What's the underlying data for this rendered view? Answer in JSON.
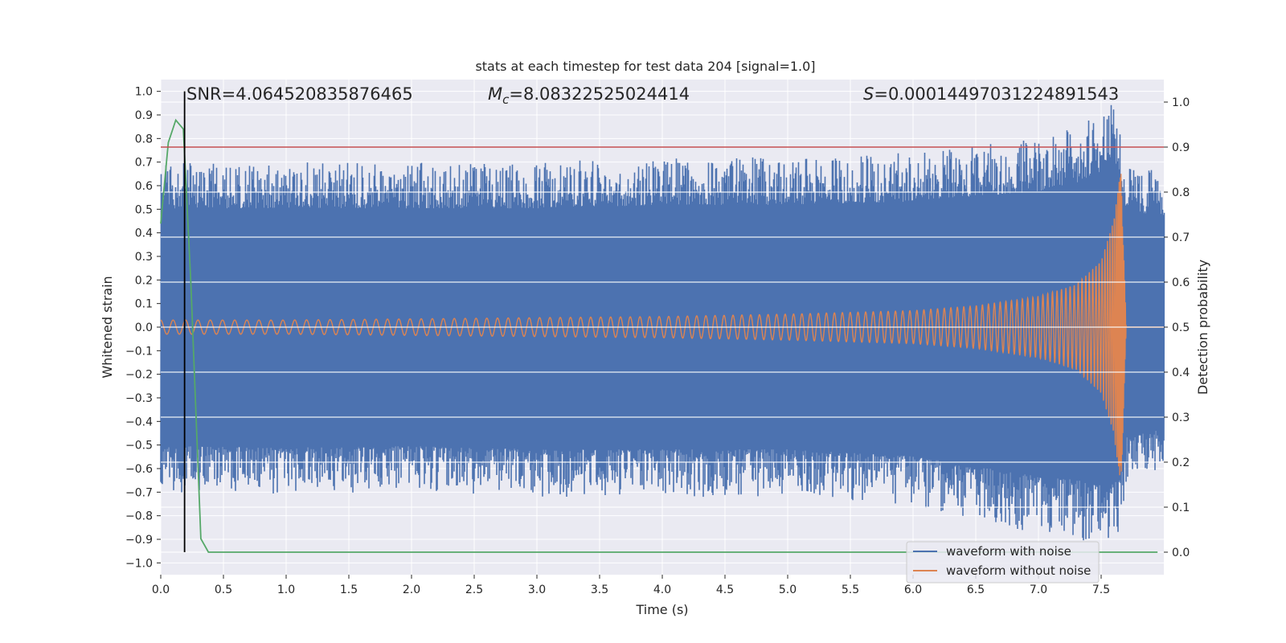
{
  "chart_data": {
    "type": "line",
    "title": "stats at each timestep for test data 204 [signal=1.0]",
    "xlabel": "Time (s)",
    "ylabel": "Whitened strain",
    "ylabel_right": "Detection probability",
    "xlim": [
      0.0,
      8.0
    ],
    "ylim": [
      -1.05,
      1.05
    ],
    "ylim_right": [
      -0.05,
      1.05
    ],
    "x_ticks": [
      0.0,
      0.5,
      1.0,
      1.5,
      2.0,
      2.5,
      3.0,
      3.5,
      4.0,
      4.5,
      5.0,
      5.5,
      6.0,
      6.5,
      7.0,
      7.5
    ],
    "x_tick_labels": [
      "0.0",
      "0.5",
      "1.0",
      "1.5",
      "2.0",
      "2.5",
      "3.0",
      "3.5",
      "4.0",
      "4.5",
      "5.0",
      "5.5",
      "6.0",
      "6.5",
      "7.0",
      "7.5"
    ],
    "y_ticks": [
      -1.0,
      -0.9,
      -0.8,
      -0.7,
      -0.6,
      -0.5,
      -0.4,
      -0.3,
      -0.2,
      -0.1,
      0.0,
      0.1,
      0.2,
      0.3,
      0.4,
      0.5,
      0.6,
      0.7,
      0.8,
      0.9,
      1.0
    ],
    "y_tick_labels": [
      "−1.0",
      "−0.9",
      "−0.8",
      "−0.7",
      "−0.6",
      "−0.5",
      "−0.4",
      "−0.3",
      "−0.2",
      "−0.1",
      "0.0",
      "0.1",
      "0.2",
      "0.3",
      "0.4",
      "0.5",
      "0.6",
      "0.7",
      "0.8",
      "0.9",
      "1.0"
    ],
    "y_right_ticks": [
      0.0,
      0.1,
      0.2,
      0.3,
      0.4,
      0.5,
      0.6,
      0.7,
      0.8,
      0.9,
      1.0
    ],
    "y_right_tick_labels": [
      "0.0",
      "0.1",
      "0.2",
      "0.3",
      "0.4",
      "0.5",
      "0.6",
      "0.7",
      "0.8",
      "0.9",
      "1.0"
    ],
    "annotations": {
      "snr": "SNR=4.064520835876465",
      "mc_symbol": "M",
      "mc_sub": "c",
      "mc_value": "=8.08322525024414",
      "s_symbol": "S",
      "s_value": "=0.00014497031224891543"
    },
    "series": [
      {
        "name": "waveform with noise",
        "color": "#4c72b0",
        "description": "noisy whitened strain, envelope approx ±0.6, peaks ±1.0 near t=7.6 s",
        "envelope_x": [
          0.0,
          1.0,
          2.0,
          3.0,
          4.0,
          5.0,
          6.0,
          6.5,
          7.0,
          7.3,
          7.5,
          7.6,
          7.66,
          7.7,
          8.0
        ],
        "envelope_hi": [
          0.7,
          0.7,
          0.7,
          0.7,
          0.72,
          0.72,
          0.74,
          0.77,
          0.8,
          0.85,
          0.92,
          1.0,
          0.85,
          0.68,
          0.66
        ],
        "envelope_lo": [
          -0.7,
          -0.71,
          -0.7,
          -0.72,
          -0.72,
          -0.72,
          -0.76,
          -0.82,
          -0.88,
          -0.9,
          -0.93,
          -0.92,
          -0.88,
          -0.65,
          -0.6
        ]
      },
      {
        "name": "waveform without noise",
        "color": "#dd8452",
        "description": "chirp signal amplitude growing toward merger at ~7.66 s then ringdown to 0",
        "amp_x": [
          0.0,
          1.0,
          2.0,
          3.0,
          4.0,
          5.0,
          6.0,
          6.5,
          7.0,
          7.3,
          7.5,
          7.6,
          7.65,
          7.66,
          7.7,
          8.0
        ],
        "amp_y": [
          0.03,
          0.03,
          0.035,
          0.04,
          0.045,
          0.055,
          0.07,
          0.09,
          0.13,
          0.18,
          0.28,
          0.45,
          0.65,
          0.67,
          0.0,
          0.0
        ]
      },
      {
        "name": "detection probability",
        "color": "#55a868",
        "axis": "right",
        "x": [
          0.0,
          0.06,
          0.12,
          0.18,
          0.24,
          0.32,
          0.38,
          7.95
        ],
        "y": [
          0.73,
          0.91,
          0.96,
          0.94,
          0.6,
          0.03,
          0.0,
          0.0
        ]
      }
    ],
    "hlines": [
      {
        "name": "threshold",
        "y_right": 0.9,
        "color": "#c44e52"
      }
    ],
    "vlines": [
      {
        "name": "detection time",
        "x": 0.19,
        "color": "#000000"
      }
    ],
    "legend": {
      "placement": "lower-right",
      "entries": [
        {
          "label": "waveform with noise",
          "color": "#4c72b0"
        },
        {
          "label": "waveform without noise",
          "color": "#dd8452"
        }
      ]
    },
    "grid": true,
    "background": "#eaeaf2"
  }
}
